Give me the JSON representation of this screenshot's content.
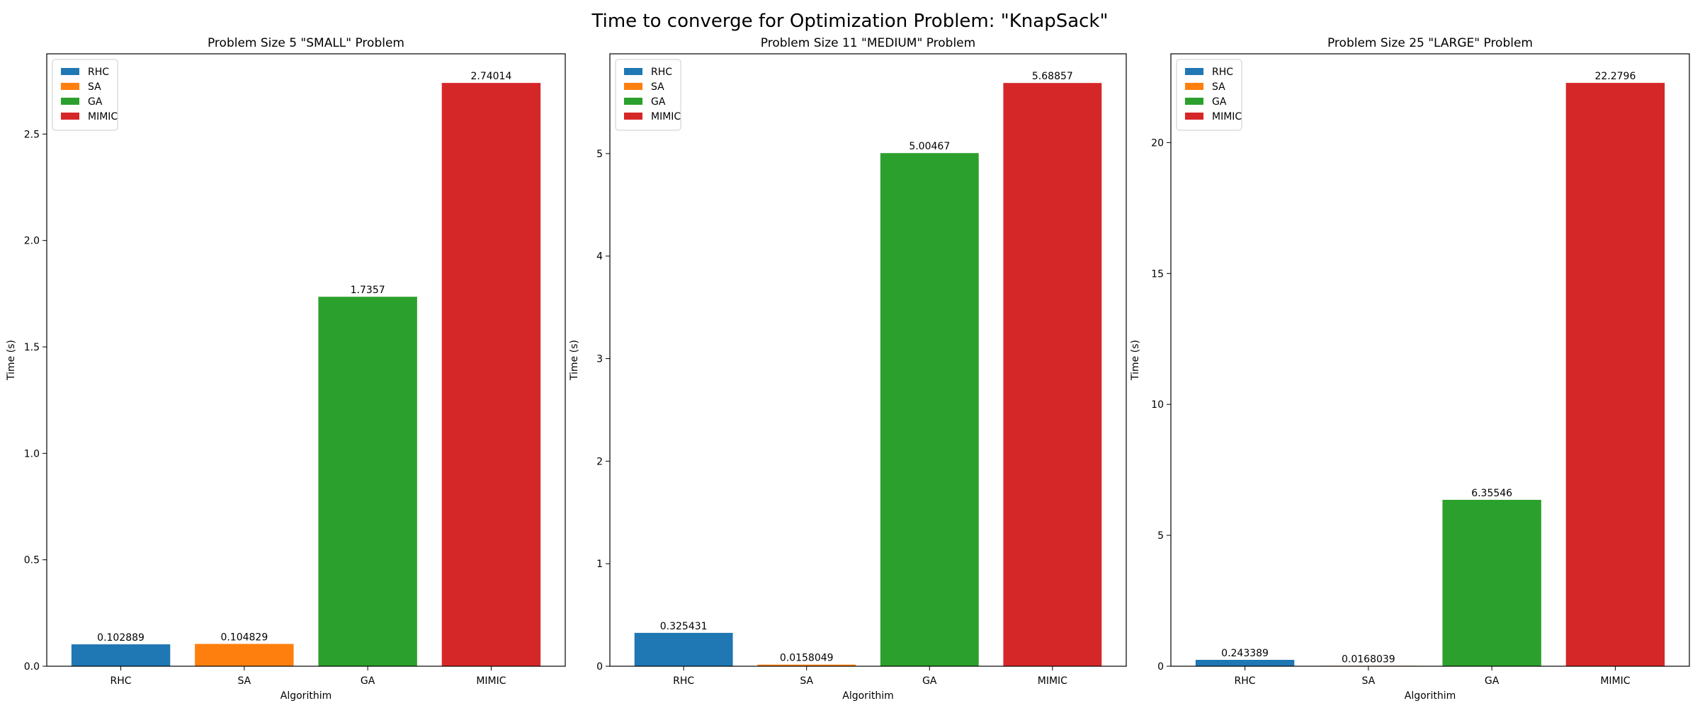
{
  "figure_title": "Time to converge for Optimization Problem: \"KnapSack\"",
  "colors": {
    "RHC": "#1f77b4",
    "SA": "#ff7f0e",
    "GA": "#2ca02c",
    "MIMIC": "#d62728"
  },
  "chart_data": [
    {
      "type": "bar",
      "title": "Problem Size 5 \"SMALL\" Problem",
      "xlabel": "Algorithim",
      "ylabel": "Time (s)",
      "categories": [
        "RHC",
        "SA",
        "GA",
        "MIMIC"
      ],
      "values": [
        0.102889,
        0.104829,
        1.7357,
        2.74014
      ],
      "value_labels": [
        "0.102889",
        "0.104829",
        "1.7357",
        "2.74014"
      ],
      "ylim": [
        0,
        2.877
      ],
      "yticks": [
        0.0,
        0.5,
        1.0,
        1.5,
        2.0,
        2.5
      ],
      "ytick_labels": [
        "0.0",
        "0.5",
        "1.0",
        "1.5",
        "2.0",
        "2.5"
      ],
      "legend": [
        "RHC",
        "SA",
        "GA",
        "MIMIC"
      ],
      "legend_position": "top-left",
      "grid": false
    },
    {
      "type": "bar",
      "title": "Problem Size 11 \"MEDIUM\" Problem",
      "xlabel": "Algorithim",
      "ylabel": "Time (s)",
      "categories": [
        "RHC",
        "SA",
        "GA",
        "MIMIC"
      ],
      "values": [
        0.325431,
        0.0158049,
        5.00467,
        5.68857
      ],
      "value_labels": [
        "0.325431",
        "0.0158049",
        "5.00467",
        "5.68857"
      ],
      "ylim": [
        0,
        5.973
      ],
      "yticks": [
        0,
        1,
        2,
        3,
        4,
        5
      ],
      "ytick_labels": [
        "0",
        "1",
        "2",
        "3",
        "4",
        "5"
      ],
      "legend": [
        "RHC",
        "SA",
        "GA",
        "MIMIC"
      ],
      "legend_position": "top-left",
      "grid": false
    },
    {
      "type": "bar",
      "title": "Problem Size 25 \"LARGE\" Problem",
      "xlabel": "Algorithim",
      "ylabel": "Time (s)",
      "categories": [
        "RHC",
        "SA",
        "GA",
        "MIMIC"
      ],
      "values": [
        0.243389,
        0.0168039,
        6.35546,
        22.2796
      ],
      "value_labels": [
        "0.243389",
        "0.0168039",
        "6.35546",
        "22.2796"
      ],
      "ylim": [
        0,
        23.39
      ],
      "yticks": [
        0,
        5,
        10,
        15,
        20
      ],
      "ytick_labels": [
        "0",
        "5",
        "10",
        "15",
        "20"
      ],
      "legend": [
        "RHC",
        "SA",
        "GA",
        "MIMIC"
      ],
      "legend_position": "top-left",
      "grid": false
    }
  ]
}
